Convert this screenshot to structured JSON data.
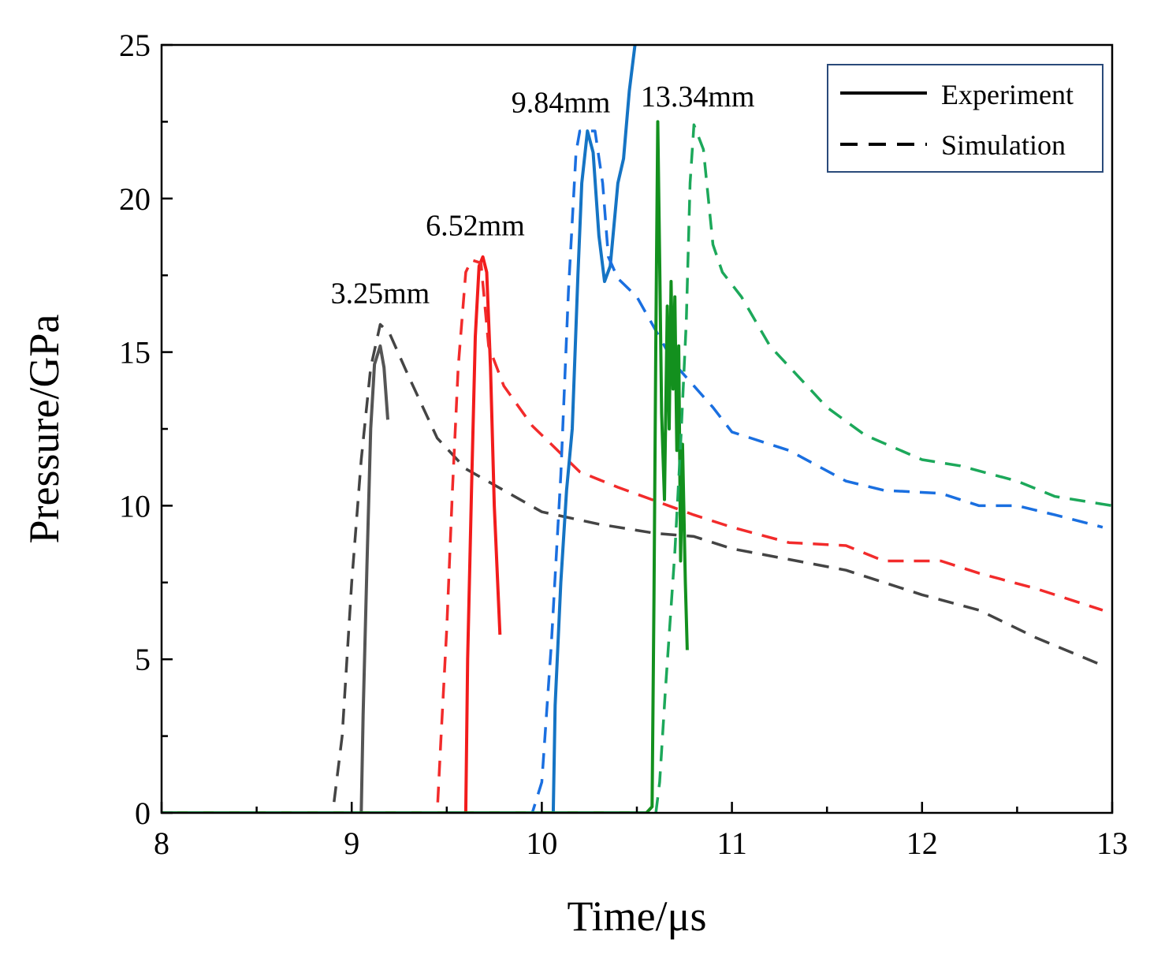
{
  "chart_data": {
    "type": "line",
    "xlabel": "Time/μs",
    "ylabel": "Pressure/GPa",
    "xlim": [
      8,
      13
    ],
    "ylim": [
      0,
      25
    ],
    "x_ticks": [
      "8",
      "9",
      "10",
      "11",
      "12",
      "13"
    ],
    "y_ticks": [
      "0",
      "5",
      "10",
      "15",
      "20",
      "25"
    ],
    "grid": false,
    "legend": {
      "placement": "top-right",
      "entries": [
        {
          "label": "Experiment",
          "style": "solid"
        },
        {
          "label": "Simulation",
          "style": "dashed"
        }
      ]
    },
    "annotations": [
      {
        "text": "3.25mm",
        "x": 9.15,
        "y": 16.6
      },
      {
        "text": "6.52mm",
        "x": 9.65,
        "y": 18.8
      },
      {
        "text": "9.84mm",
        "x": 10.1,
        "y": 22.8
      },
      {
        "text": "13.34mm",
        "x": 10.82,
        "y": 23.0
      }
    ],
    "series": [
      {
        "group": "3.25mm",
        "style": "solid",
        "color": "#555555",
        "points": [
          [
            8,
            0
          ],
          [
            9.05,
            0
          ],
          [
            9.06,
            3.2
          ],
          [
            9.08,
            8
          ],
          [
            9.1,
            12.5
          ],
          [
            9.12,
            14.6
          ],
          [
            9.15,
            15.2
          ],
          [
            9.17,
            14.5
          ],
          [
            9.19,
            12.8
          ]
        ]
      },
      {
        "group": "3.25mm",
        "style": "dashed",
        "color": "#444444",
        "points": [
          [
            8,
            0
          ],
          [
            8.9,
            0
          ],
          [
            8.95,
            2.5
          ],
          [
            9.0,
            7.5
          ],
          [
            9.05,
            11.5
          ],
          [
            9.1,
            14.5
          ],
          [
            9.15,
            15.9
          ],
          [
            9.2,
            15.6
          ],
          [
            9.3,
            14.2
          ],
          [
            9.45,
            12.2
          ],
          [
            9.6,
            11.2
          ],
          [
            10.0,
            9.8
          ],
          [
            10.3,
            9.4
          ],
          [
            10.6,
            9.1
          ],
          [
            10.8,
            9.0
          ],
          [
            11.0,
            8.6
          ],
          [
            11.6,
            7.9
          ],
          [
            12.0,
            7.1
          ],
          [
            12.3,
            6.6
          ],
          [
            12.6,
            5.7
          ],
          [
            12.95,
            4.8
          ]
        ]
      },
      {
        "group": "6.52mm",
        "style": "solid",
        "color": "#f21c1c",
        "points": [
          [
            8,
            0
          ],
          [
            9.6,
            0
          ],
          [
            9.61,
            5
          ],
          [
            9.63,
            10.5
          ],
          [
            9.65,
            15.5
          ],
          [
            9.67,
            17.8
          ],
          [
            9.69,
            18.1
          ],
          [
            9.71,
            17.6
          ],
          [
            9.73,
            14.5
          ],
          [
            9.75,
            10
          ],
          [
            9.78,
            5.8
          ]
        ]
      },
      {
        "group": "6.52mm",
        "style": "dashed",
        "color": "#f22b2b",
        "points": [
          [
            8,
            0
          ],
          [
            9.35,
            0
          ],
          [
            9.45,
            0
          ],
          [
            9.47,
            2.5
          ],
          [
            9.5,
            6
          ],
          [
            9.53,
            10.5
          ],
          [
            9.56,
            14.5
          ],
          [
            9.6,
            17.6
          ],
          [
            9.63,
            18.0
          ],
          [
            9.68,
            17.9
          ],
          [
            9.72,
            15.2
          ],
          [
            9.8,
            13.9
          ],
          [
            9.95,
            12.6
          ],
          [
            10.1,
            11.7
          ],
          [
            10.2,
            11.1
          ],
          [
            10.4,
            10.6
          ],
          [
            10.8,
            9.7
          ],
          [
            11.0,
            9.3
          ],
          [
            11.3,
            8.8
          ],
          [
            11.6,
            8.7
          ],
          [
            11.8,
            8.2
          ],
          [
            12.1,
            8.2
          ],
          [
            12.3,
            7.8
          ],
          [
            12.6,
            7.3
          ],
          [
            12.95,
            6.6
          ]
        ]
      },
      {
        "group": "9.84mm",
        "style": "solid",
        "color": "#1574c4",
        "points": [
          [
            8,
            0
          ],
          [
            10.0,
            0
          ],
          [
            10.06,
            0
          ],
          [
            10.07,
            3.5
          ],
          [
            10.1,
            7.5
          ],
          [
            10.13,
            10.5
          ],
          [
            10.16,
            12.5
          ],
          [
            10.19,
            17.5
          ],
          [
            10.21,
            20.5
          ],
          [
            10.24,
            22.2
          ],
          [
            10.27,
            21.5
          ],
          [
            10.3,
            18.8
          ],
          [
            10.33,
            17.3
          ],
          [
            10.36,
            17.8
          ],
          [
            10.4,
            20.5
          ],
          [
            10.43,
            21.3
          ],
          [
            10.46,
            23.5
          ],
          [
            10.5,
            25.5
          ]
        ]
      },
      {
        "group": "9.84mm",
        "style": "dashed",
        "color": "#1a6fe0",
        "points": [
          [
            8,
            0
          ],
          [
            9.95,
            0
          ],
          [
            10.0,
            1
          ],
          [
            10.05,
            5.5
          ],
          [
            10.1,
            11
          ],
          [
            10.14,
            17
          ],
          [
            10.18,
            21.5
          ],
          [
            10.2,
            22.2
          ],
          [
            10.28,
            22.2
          ],
          [
            10.32,
            20.5
          ],
          [
            10.35,
            18.1
          ],
          [
            10.4,
            17.4
          ],
          [
            10.5,
            16.8
          ],
          [
            10.7,
            14.6
          ],
          [
            10.9,
            13.2
          ],
          [
            11.0,
            12.4
          ],
          [
            11.3,
            11.8
          ],
          [
            11.6,
            10.8
          ],
          [
            11.8,
            10.5
          ],
          [
            12.1,
            10.4
          ],
          [
            12.3,
            10.0
          ],
          [
            12.5,
            10.0
          ],
          [
            12.7,
            9.7
          ],
          [
            12.95,
            9.3
          ]
        ]
      },
      {
        "group": "13.34mm",
        "style": "solid",
        "color": "#13901e",
        "points": [
          [
            8,
            0
          ],
          [
            10.55,
            0
          ],
          [
            10.58,
            0.2
          ],
          [
            10.59,
            7
          ],
          [
            10.6,
            15.5
          ],
          [
            10.61,
            22.5
          ],
          [
            10.62,
            18
          ],
          [
            10.63,
            13
          ],
          [
            10.645,
            10.2
          ],
          [
            10.66,
            16.5
          ],
          [
            10.67,
            12.5
          ],
          [
            10.68,
            17.3
          ],
          [
            10.69,
            13.8
          ],
          [
            10.7,
            16.8
          ],
          [
            10.71,
            11.8
          ],
          [
            10.72,
            15.2
          ],
          [
            10.73,
            8.2
          ],
          [
            10.74,
            12
          ],
          [
            10.755,
            7.5
          ],
          [
            10.765,
            5.3
          ]
        ]
      },
      {
        "group": "13.34mm",
        "style": "dashed",
        "color": "#1ca85a",
        "points": [
          [
            8,
            0
          ],
          [
            10.6,
            0
          ],
          [
            10.62,
            1
          ],
          [
            10.65,
            4
          ],
          [
            10.7,
            8.5
          ],
          [
            10.73,
            12
          ],
          [
            10.76,
            16
          ],
          [
            10.78,
            20.5
          ],
          [
            10.8,
            22.4
          ],
          [
            10.85,
            21.6
          ],
          [
            10.9,
            18.5
          ],
          [
            10.95,
            17.6
          ],
          [
            11.05,
            16.8
          ],
          [
            11.2,
            15.2
          ],
          [
            11.5,
            13.2
          ],
          [
            11.7,
            12.3
          ],
          [
            12.0,
            11.5
          ],
          [
            12.2,
            11.3
          ],
          [
            12.5,
            10.8
          ],
          [
            12.7,
            10.3
          ],
          [
            13.0,
            10.0
          ]
        ]
      }
    ]
  }
}
